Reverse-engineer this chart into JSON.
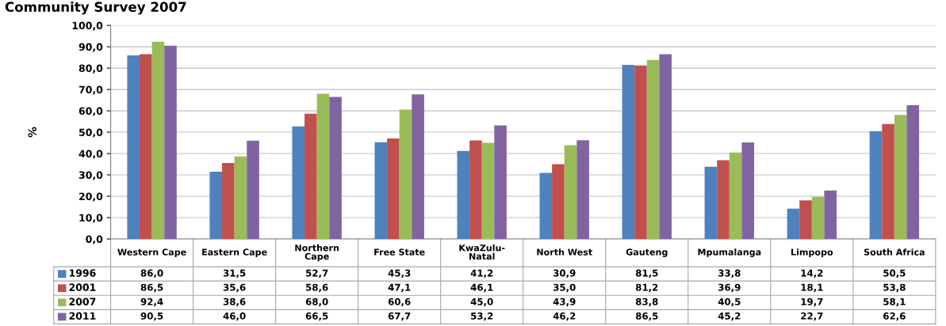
{
  "chart_data": {
    "type": "bar",
    "title": "Community Survey 2007",
    "ylabel": "%",
    "categories": [
      "Western Cape",
      "Eastern Cape",
      "Northern Cape",
      "Free State",
      "KwaZulu-Natal",
      "North West",
      "Gauteng",
      "Mpumalanga",
      "Limpopo",
      "South Africa"
    ],
    "series": [
      {
        "name": "1996",
        "color": "#4f81bd",
        "values": [
          86.0,
          31.5,
          52.7,
          45.3,
          41.2,
          30.9,
          81.5,
          33.8,
          14.2,
          50.5
        ],
        "value_labels": [
          "86,0",
          "31,5",
          "52,7",
          "45,3",
          "41,2",
          "30,9",
          "81,5",
          "33,8",
          "14,2",
          "50,5"
        ]
      },
      {
        "name": "2001",
        "color": "#c0504d",
        "values": [
          86.5,
          35.6,
          58.6,
          47.1,
          46.1,
          35.0,
          81.2,
          36.9,
          18.1,
          53.8
        ],
        "value_labels": [
          "86,5",
          "35,6",
          "58,6",
          "47,1",
          "46,1",
          "35,0",
          "81,2",
          "36,9",
          "18,1",
          "53,8"
        ]
      },
      {
        "name": "2007",
        "color": "#9bbb59",
        "values": [
          92.4,
          38.6,
          68.0,
          60.6,
          45.0,
          43.9,
          83.8,
          40.5,
          19.7,
          58.1
        ],
        "value_labels": [
          "92,4",
          "38,6",
          "68,0",
          "60,6",
          "45,0",
          "43,9",
          "83,8",
          "40,5",
          "19,7",
          "58,1"
        ]
      },
      {
        "name": "2011",
        "color": "#8064a2",
        "values": [
          90.5,
          46.0,
          66.5,
          67.7,
          53.2,
          46.2,
          86.5,
          45.2,
          22.7,
          62.6
        ],
        "value_labels": [
          "90,5",
          "46,0",
          "66,5",
          "67,7",
          "53,2",
          "46,2",
          "86,5",
          "45,2",
          "22,7",
          "62,6"
        ]
      }
    ],
    "ylim": [
      0,
      100
    ],
    "yticks": [
      {
        "value": 0,
        "label": "0,0"
      },
      {
        "value": 10,
        "label": "10,0"
      },
      {
        "value": 20,
        "label": "20,0"
      },
      {
        "value": 30,
        "label": "30,0"
      },
      {
        "value": 40,
        "label": "40,0"
      },
      {
        "value": 50,
        "label": "50,0"
      },
      {
        "value": 60,
        "label": "60,0"
      },
      {
        "value": 70,
        "label": "70,0"
      },
      {
        "value": 80,
        "label": "80,0"
      },
      {
        "value": 90,
        "label": "90,0"
      },
      {
        "value": 100,
        "label": "100,0"
      }
    ],
    "grid": "y",
    "legend": "left"
  }
}
